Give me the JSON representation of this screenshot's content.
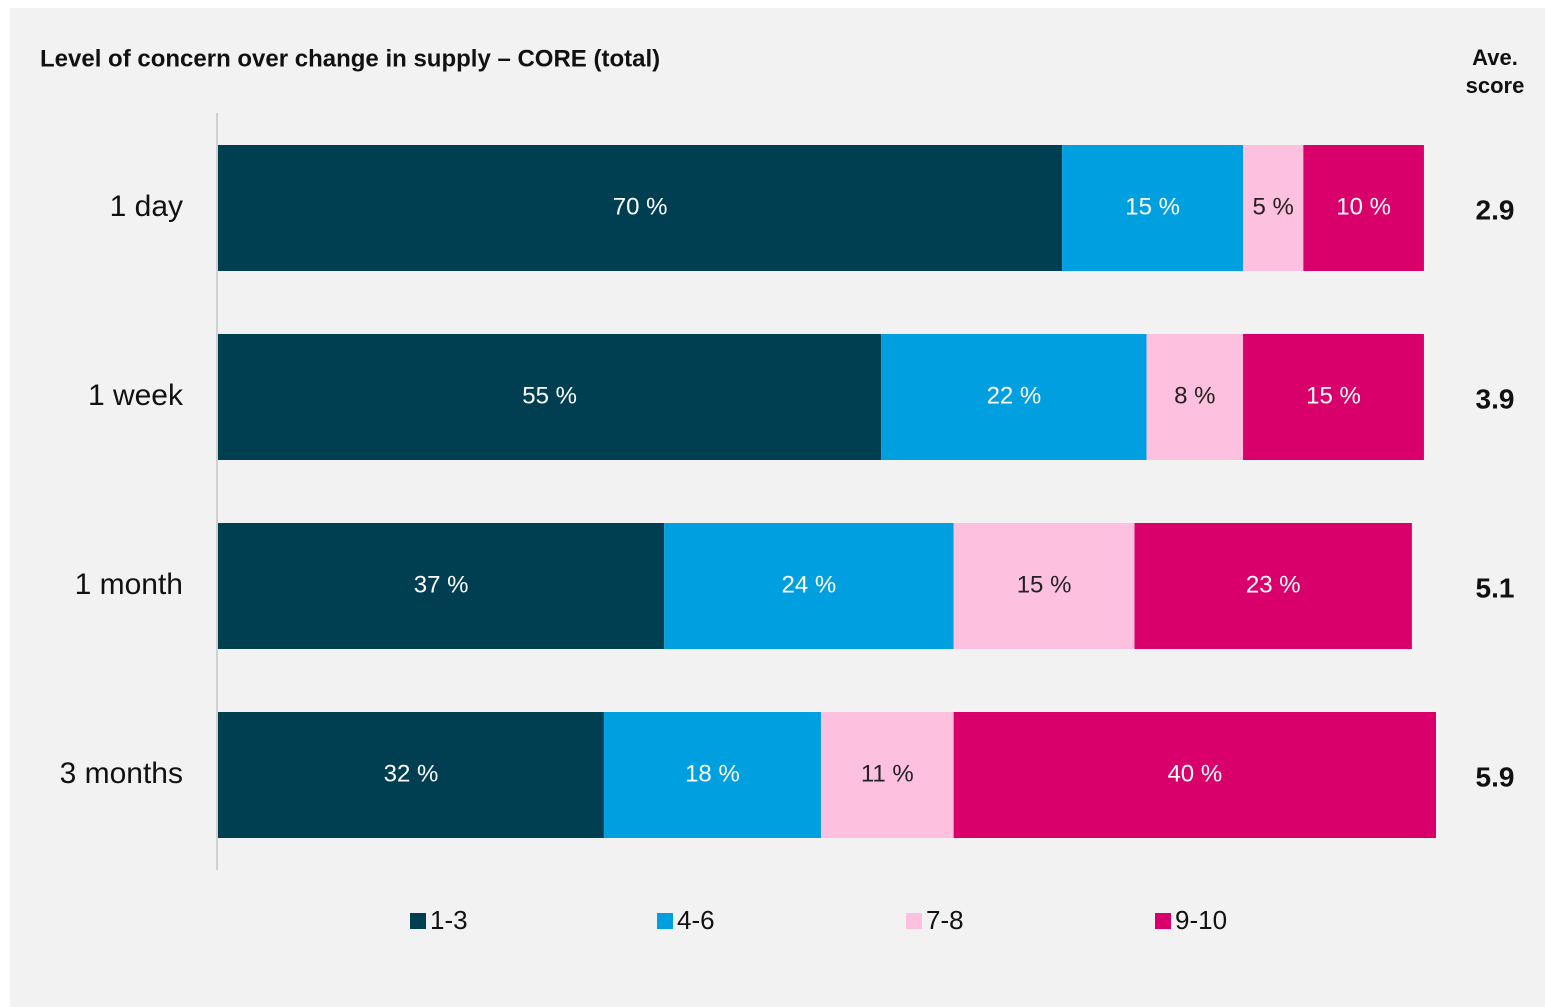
{
  "chart_data": {
    "type": "stacked-bar-horizontal",
    "title": "Level of concern over change in supply – CORE (total)",
    "categories": [
      "1 day",
      "1 week",
      "1 month",
      "3 months"
    ],
    "series": [
      {
        "name": "1-3",
        "color": "#003f51",
        "label_color": "#ffffff",
        "values": [
          70,
          55,
          37,
          32
        ],
        "value_labels": [
          "70 %",
          "55 %",
          "37 %",
          "32 %"
        ]
      },
      {
        "name": "4-6",
        "color": "#009fdf",
        "label_color": "#ffffff",
        "values": [
          15,
          22,
          24,
          18
        ],
        "value_labels": [
          "15 %",
          "22 %",
          "24 %",
          "18 %"
        ]
      },
      {
        "name": "7-8",
        "color": "#fdc1df",
        "label_color": "#222222",
        "values": [
          5,
          8,
          15,
          11
        ],
        "value_labels": [
          "5 %",
          "8 %",
          "15 %",
          "11 %"
        ]
      },
      {
        "name": "9-10",
        "color": "#d9006c",
        "label_color": "#ffffff",
        "values": [
          10,
          15,
          23,
          40
        ],
        "value_labels": [
          "10 %",
          "15 %",
          "23 %",
          "40 %"
        ]
      }
    ],
    "xlim": [
      0,
      101
    ],
    "ave_score_header": [
      "Ave.",
      "score"
    ],
    "ave_scores": [
      2.9,
      3.9,
      5.1,
      5.9
    ],
    "legend": "bottom"
  }
}
